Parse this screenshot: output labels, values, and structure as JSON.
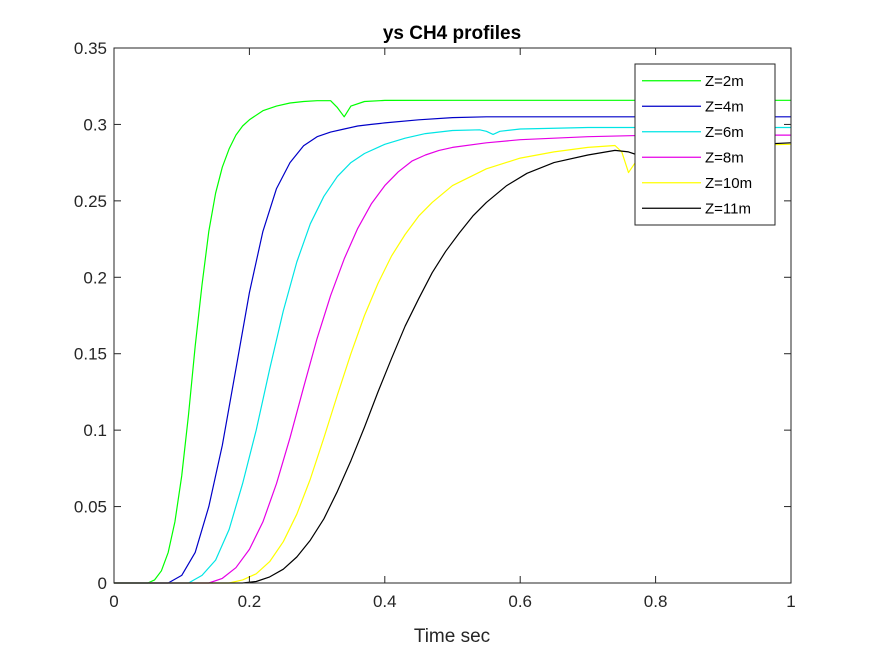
{
  "chart_data": {
    "type": "line",
    "title": "ys CH4 profiles",
    "xlabel": "Time sec",
    "ylabel": "",
    "xlim": [
      0,
      1
    ],
    "ylim": [
      0,
      0.35
    ],
    "xticks": [
      0,
      0.2,
      0.4,
      0.6,
      0.8,
      1
    ],
    "xtick_labels": [
      "0",
      "0.2",
      "0.4",
      "0.6",
      "0.8",
      "1"
    ],
    "yticks": [
      0,
      0.05,
      0.1,
      0.15,
      0.2,
      0.25,
      0.3,
      0.35
    ],
    "ytick_labels": [
      "0",
      "0.05",
      "0.1",
      "0.15",
      "0.2",
      "0.25",
      "0.3",
      "0.35"
    ],
    "grid": false,
    "legend_position": "top-right",
    "series": [
      {
        "name": "Z=2m",
        "color": "#00ff00",
        "x": [
          0,
          0.05,
          0.06,
          0.07,
          0.08,
          0.09,
          0.1,
          0.11,
          0.12,
          0.13,
          0.14,
          0.15,
          0.16,
          0.17,
          0.18,
          0.19,
          0.2,
          0.22,
          0.24,
          0.26,
          0.28,
          0.3,
          0.32,
          0.33,
          0.34,
          0.35,
          0.37,
          0.4,
          0.5,
          1.0
        ],
        "y": [
          0,
          0,
          0.002,
          0.008,
          0.02,
          0.04,
          0.07,
          0.11,
          0.155,
          0.195,
          0.23,
          0.255,
          0.272,
          0.284,
          0.293,
          0.299,
          0.303,
          0.309,
          0.312,
          0.314,
          0.315,
          0.3155,
          0.3155,
          0.311,
          0.305,
          0.312,
          0.315,
          0.3157,
          0.3158,
          0.3158
        ]
      },
      {
        "name": "Z=4m",
        "color": "#0000c8",
        "x": [
          0,
          0.08,
          0.1,
          0.12,
          0.14,
          0.16,
          0.18,
          0.2,
          0.22,
          0.24,
          0.26,
          0.28,
          0.3,
          0.32,
          0.34,
          0.36,
          0.38,
          0.4,
          0.45,
          0.5,
          0.55,
          0.6,
          1.0
        ],
        "y": [
          0,
          0,
          0.005,
          0.02,
          0.05,
          0.09,
          0.14,
          0.19,
          0.23,
          0.258,
          0.275,
          0.286,
          0.292,
          0.295,
          0.297,
          0.299,
          0.3,
          0.301,
          0.303,
          0.3045,
          0.305,
          0.305,
          0.305
        ]
      },
      {
        "name": "Z=6m",
        "color": "#00e5e5",
        "x": [
          0,
          0.11,
          0.13,
          0.15,
          0.17,
          0.19,
          0.21,
          0.23,
          0.25,
          0.27,
          0.29,
          0.31,
          0.33,
          0.35,
          0.37,
          0.4,
          0.43,
          0.46,
          0.5,
          0.54,
          0.55,
          0.56,
          0.57,
          0.6,
          0.7,
          1.0
        ],
        "y": [
          0,
          0,
          0.005,
          0.015,
          0.035,
          0.065,
          0.1,
          0.14,
          0.178,
          0.21,
          0.235,
          0.253,
          0.266,
          0.275,
          0.281,
          0.287,
          0.291,
          0.294,
          0.296,
          0.2965,
          0.2955,
          0.2935,
          0.2955,
          0.297,
          0.298,
          0.298
        ]
      },
      {
        "name": "Z=8m",
        "color": "#e600e6",
        "x": [
          0,
          0.14,
          0.16,
          0.18,
          0.2,
          0.22,
          0.24,
          0.26,
          0.28,
          0.3,
          0.32,
          0.34,
          0.36,
          0.38,
          0.4,
          0.42,
          0.44,
          0.46,
          0.48,
          0.5,
          0.55,
          0.6,
          0.65,
          0.7,
          0.8,
          1.0
        ],
        "y": [
          0,
          0,
          0.003,
          0.01,
          0.022,
          0.04,
          0.065,
          0.095,
          0.128,
          0.16,
          0.188,
          0.212,
          0.232,
          0.248,
          0.26,
          0.269,
          0.276,
          0.28,
          0.283,
          0.285,
          0.288,
          0.29,
          0.291,
          0.292,
          0.293,
          0.293
        ]
      },
      {
        "name": "Z=10m",
        "color": "#ffff00",
        "x": [
          0,
          0.17,
          0.19,
          0.21,
          0.23,
          0.25,
          0.27,
          0.29,
          0.31,
          0.33,
          0.35,
          0.37,
          0.39,
          0.41,
          0.43,
          0.45,
          0.47,
          0.5,
          0.55,
          0.6,
          0.65,
          0.7,
          0.74,
          0.75,
          0.76,
          0.77,
          0.8,
          0.9,
          1.0
        ],
        "y": [
          0,
          0,
          0.002,
          0.006,
          0.014,
          0.027,
          0.045,
          0.068,
          0.095,
          0.123,
          0.15,
          0.175,
          0.196,
          0.214,
          0.228,
          0.24,
          0.249,
          0.26,
          0.271,
          0.278,
          0.282,
          0.285,
          0.2862,
          0.282,
          0.2685,
          0.275,
          0.282,
          0.286,
          0.287
        ]
      },
      {
        "name": "Z=11m",
        "color": "#000000",
        "x": [
          0,
          0.19,
          0.21,
          0.23,
          0.25,
          0.27,
          0.29,
          0.31,
          0.33,
          0.35,
          0.37,
          0.39,
          0.41,
          0.43,
          0.45,
          0.47,
          0.49,
          0.51,
          0.53,
          0.55,
          0.58,
          0.61,
          0.65,
          0.7,
          0.74,
          0.76,
          0.78,
          0.8,
          0.85,
          1.0
        ],
        "y": [
          0,
          0,
          0.001,
          0.004,
          0.009,
          0.017,
          0.028,
          0.042,
          0.06,
          0.08,
          0.102,
          0.125,
          0.147,
          0.168,
          0.186,
          0.203,
          0.217,
          0.229,
          0.24,
          0.249,
          0.26,
          0.268,
          0.275,
          0.28,
          0.283,
          0.282,
          0.279,
          0.281,
          0.285,
          0.288
        ]
      }
    ]
  }
}
